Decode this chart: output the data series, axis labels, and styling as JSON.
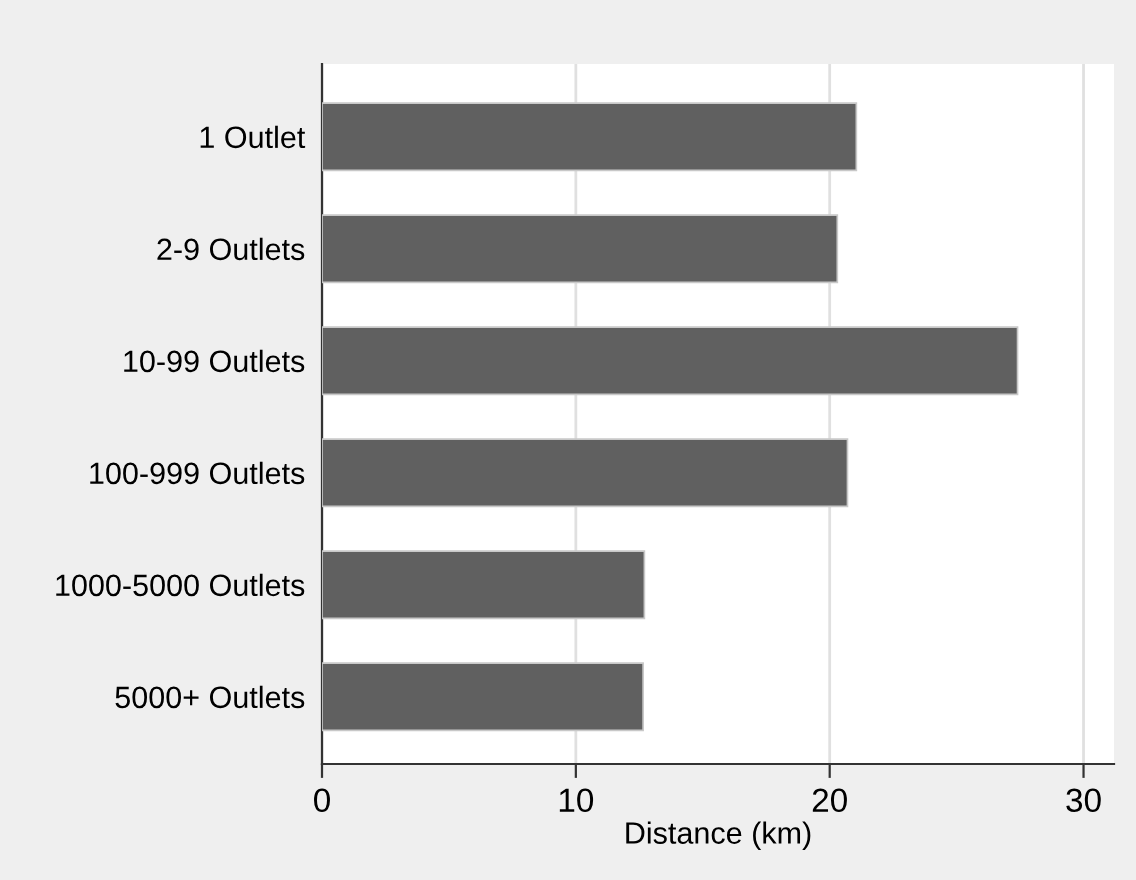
{
  "chart_data": {
    "type": "bar",
    "orientation": "horizontal",
    "xlabel": "Distance (km)",
    "categories": [
      "1 Outlet",
      "2-9 Outlets",
      "10-99 Outlets",
      "100-999 Outlets",
      "1000-5000 Outlets",
      "5000+ Outlets"
    ],
    "values": [
      21.05,
      20.3,
      27.4,
      20.7,
      12.7,
      12.65
    ],
    "color": "#606060",
    "xlim": [
      0,
      31.2
    ],
    "xticks": [
      0,
      10,
      20,
      30
    ],
    "grid": "x"
  }
}
